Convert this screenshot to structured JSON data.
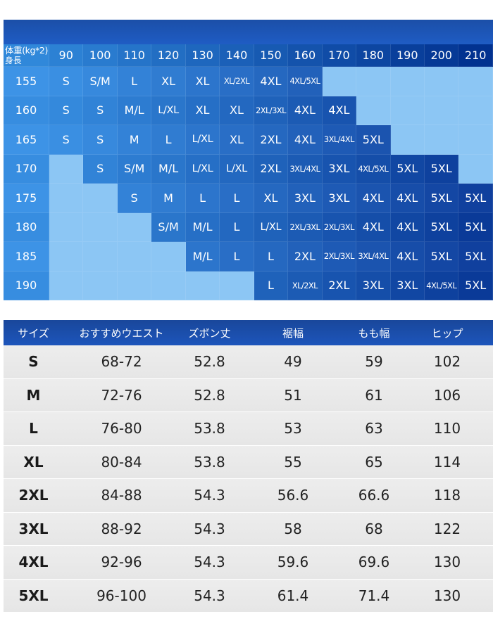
{
  "colors": {
    "header_blue": "#1c4fa6",
    "empty_cell": "#8cc6f4",
    "row_gray": "#e8e8e8"
  },
  "chart": {
    "corner_weight": "体重(kg*2)",
    "corner_height": "身長",
    "weights": [
      "90",
      "100",
      "110",
      "120",
      "130",
      "140",
      "150",
      "160",
      "170",
      "180",
      "190",
      "200",
      "210"
    ],
    "rows": [
      {
        "height": "155",
        "sizes": [
          "S",
          "S/M",
          "L",
          "XL",
          "XL",
          "XL/2XL",
          "4XL",
          "4XL/5XL",
          "",
          "",
          "",
          "",
          ""
        ]
      },
      {
        "height": "160",
        "sizes": [
          "S",
          "S",
          "M/L",
          "L/XL",
          "XL",
          "XL",
          "2XL/3XL",
          "4XL",
          "4XL",
          "",
          "",
          "",
          ""
        ]
      },
      {
        "height": "165",
        "sizes": [
          "S",
          "S",
          "M",
          "L",
          "L/XL",
          "XL",
          "2XL",
          "4XL",
          "3XL/4XL",
          "5XL",
          "",
          "",
          ""
        ]
      },
      {
        "height": "170",
        "sizes": [
          "",
          "S",
          "S/M",
          "M/L",
          "L/XL",
          "L/XL",
          "2XL",
          "3XL/4XL",
          "3XL",
          "4XL/5XL",
          "5XL",
          "5XL",
          ""
        ]
      },
      {
        "height": "175",
        "sizes": [
          "",
          "",
          "S",
          "M",
          "L",
          "L",
          "XL",
          "3XL",
          "3XL",
          "4XL",
          "4XL",
          "5XL",
          "5XL"
        ]
      },
      {
        "height": "180",
        "sizes": [
          "",
          "",
          "",
          "S/M",
          "M/L",
          "L",
          "L/XL",
          "2XL/3XL",
          "2XL/3XL",
          "4XL",
          "4XL",
          "5XL",
          "5XL"
        ]
      },
      {
        "height": "185",
        "sizes": [
          "",
          "",
          "",
          "",
          "M/L",
          "L",
          "L",
          "2XL",
          "2XL/3XL",
          "3XL/4XL",
          "4XL",
          "5XL",
          "5XL"
        ]
      },
      {
        "height": "190",
        "sizes": [
          "",
          "",
          "",
          "",
          "",
          "",
          "L",
          "XL/2XL",
          "2XL",
          "3XL",
          "3XL",
          "4XL/5XL",
          "5XL"
        ]
      }
    ]
  },
  "table": {
    "headers": [
      "サイズ",
      "おすすめウエスト",
      "ズボン丈",
      "裾幅",
      "もも幅",
      "ヒップ"
    ],
    "rows": [
      [
        "S",
        "68-72",
        "52.8",
        "49",
        "59",
        "102"
      ],
      [
        "M",
        "72-76",
        "52.8",
        "51",
        "61",
        "106"
      ],
      [
        "L",
        "76-80",
        "53.8",
        "53",
        "63",
        "110"
      ],
      [
        "XL",
        "80-84",
        "53.8",
        "55",
        "65",
        "114"
      ],
      [
        "2XL",
        "84-88",
        "54.3",
        "56.6",
        "66.6",
        "118"
      ],
      [
        "3XL",
        "88-92",
        "54.3",
        "58",
        "68",
        "122"
      ],
      [
        "4XL",
        "92-96",
        "54.3",
        "59.6",
        "69.6",
        "130"
      ],
      [
        "5XL",
        "96-100",
        "54.3",
        "61.4",
        "71.4",
        "130"
      ]
    ]
  }
}
